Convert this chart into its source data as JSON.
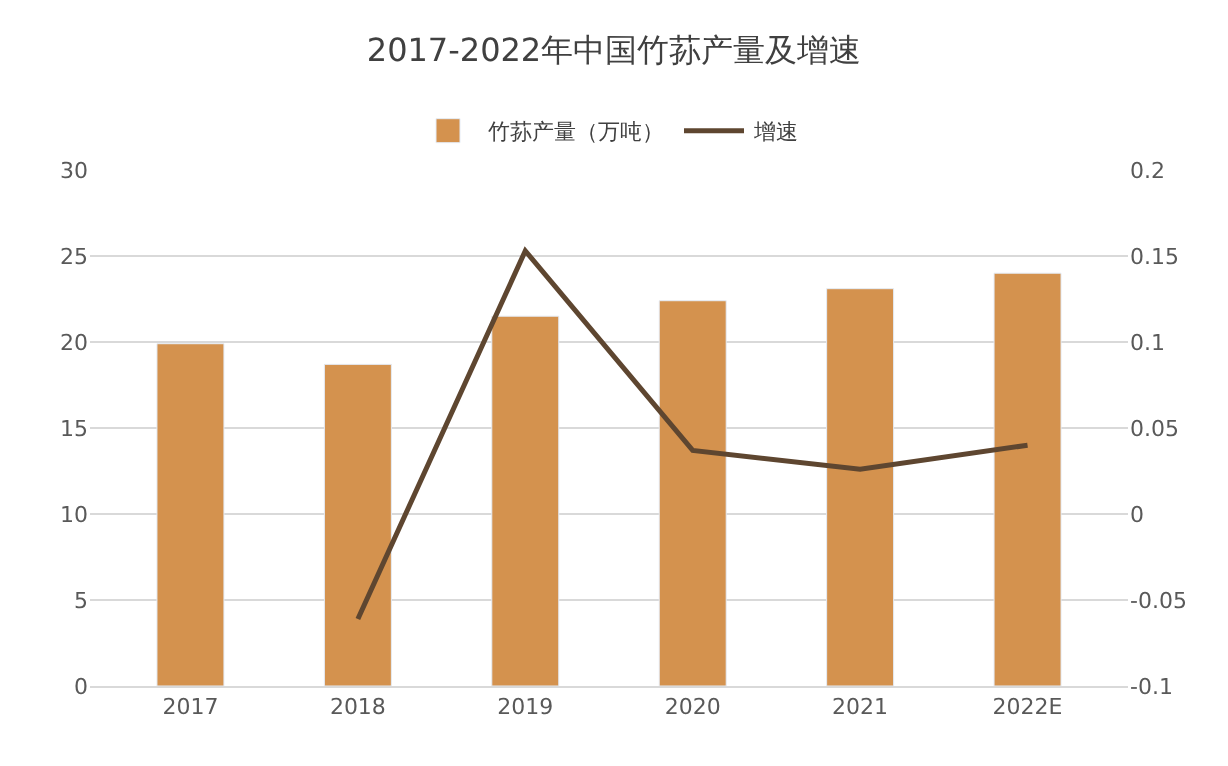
{
  "chart_data": {
    "type": "bar",
    "title": "2017-2022年中国竹荪产量及增速",
    "categories": [
      "2017",
      "2018",
      "2019",
      "2020",
      "2021",
      "2022E"
    ],
    "series": [
      {
        "name": "竹荪产量（万吨）",
        "color": "#d4924e",
        "values": [
          19.9,
          18.7,
          21.5,
          22.4,
          23.1,
          24.0
        ]
      },
      {
        "name": "增速",
        "type": "line",
        "axis": "y2",
        "color": "#5e4630",
        "values": [
          null,
          -0.061,
          0.153,
          0.037,
          0.026,
          0.04
        ]
      }
    ],
    "ylim": [
      0,
      30
    ],
    "yticks": [
      0,
      5,
      10,
      15,
      20,
      25,
      30
    ],
    "y2lim": [
      -0.1,
      0.2
    ],
    "y2ticks": [
      -0.1,
      -0.05,
      0,
      0.05,
      0.1,
      0.15,
      0.2
    ],
    "grid": "y",
    "legend": "top",
    "marker": "none",
    "line_style": "solid"
  }
}
